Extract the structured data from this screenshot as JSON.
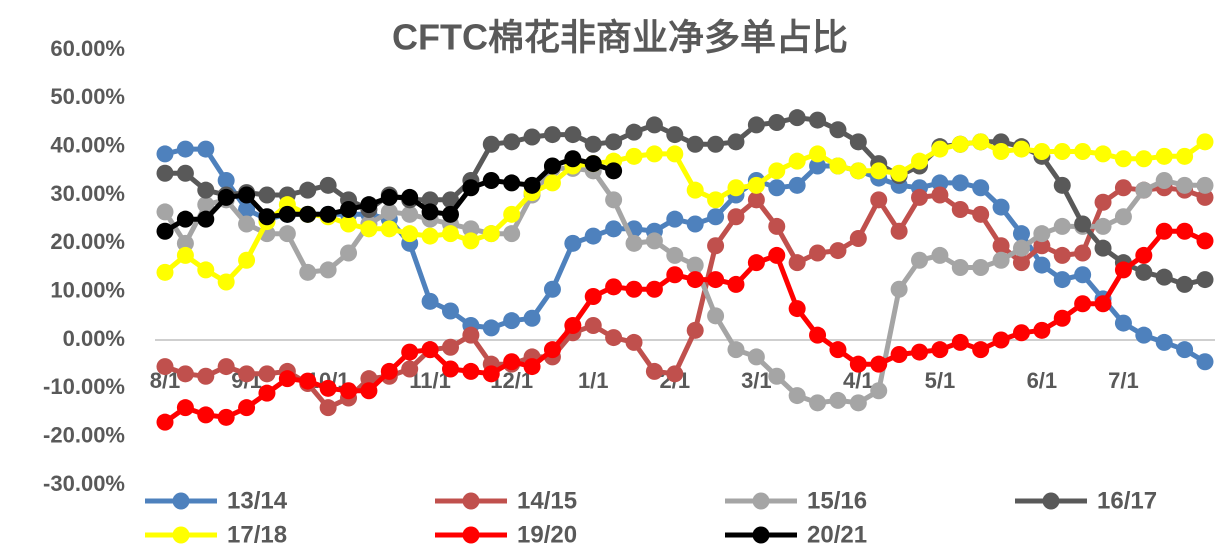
{
  "chart_data": {
    "type": "line",
    "title": "CFTC棉花非商业净多单占比",
    "categories": [
      "8/1",
      null,
      null,
      null,
      "9/1",
      null,
      null,
      null,
      "10/1",
      null,
      null,
      null,
      null,
      "11/1",
      null,
      null,
      null,
      "12/1",
      null,
      null,
      null,
      "1/1",
      null,
      null,
      null,
      "2/1",
      null,
      null,
      null,
      "3/1",
      null,
      null,
      null,
      null,
      "4/1",
      null,
      null,
      null,
      "5/1",
      null,
      null,
      null,
      null,
      "6/1",
      null,
      null,
      null,
      "7/1",
      null,
      null,
      null,
      null
    ],
    "ylim": [
      -30,
      60
    ],
    "yticks": [
      {
        "value": -30,
        "label": "-30.00%"
      },
      {
        "value": -20,
        "label": "-20.00%"
      },
      {
        "value": -10,
        "label": "-10.00%"
      },
      {
        "value": 0,
        "label": "0.00%"
      },
      {
        "value": 10,
        "label": "10.00%"
      },
      {
        "value": 20,
        "label": "20.00%"
      },
      {
        "value": 30,
        "label": "30.00%"
      },
      {
        "value": 40,
        "label": "40.00%"
      },
      {
        "value": 50,
        "label": "50.00%"
      },
      {
        "value": 60,
        "label": "60.00%"
      }
    ],
    "grid": false,
    "legend": "bottom",
    "series": [
      {
        "name": "13/14",
        "color": "#4e81bd",
        "values": [
          38.5,
          39.5,
          39.5,
          33,
          27,
          25,
          26,
          26,
          26,
          26,
          26,
          25,
          20,
          8,
          6,
          3,
          2.5,
          4,
          4.5,
          10.5,
          20,
          21.5,
          23,
          23,
          22.5,
          25,
          24,
          25.5,
          30,
          33,
          31.5,
          32,
          36,
          36,
          35,
          33.5,
          32,
          31.5,
          32.5,
          32.5,
          31.5,
          27.5,
          22,
          15.5,
          12.5,
          13.5,
          8.5,
          3.5,
          1,
          -0.5,
          -2,
          -4.5
        ]
      },
      {
        "name": "14/15",
        "color": "#c0504d",
        "values": [
          -5.5,
          -7,
          -7.5,
          -5.5,
          -7,
          -7,
          -6.5,
          -9,
          -14,
          -12,
          -8,
          -7.5,
          -6,
          -2,
          -1.5,
          1,
          -5,
          -5,
          -3.5,
          -3.5,
          1.5,
          3,
          0.5,
          -0.5,
          -6.5,
          -7,
          2,
          19.5,
          25.5,
          29,
          23.5,
          16,
          18,
          18.5,
          21,
          29,
          22.5,
          29.5,
          30,
          27,
          26,
          19.5,
          16,
          19.5,
          17.5,
          18,
          28.5,
          31.5,
          31,
          31.5,
          31,
          29.5
        ]
      },
      {
        "name": "15/16",
        "color": "#a5a5a5",
        "values": [
          26.5,
          20,
          28,
          29,
          24,
          22,
          22,
          14,
          14.5,
          18,
          24,
          26.5,
          26,
          25,
          24,
          23,
          22,
          22,
          30,
          35.5,
          35.5,
          35,
          29,
          20,
          20.5,
          17.5,
          15.5,
          5,
          -2,
          -3.5,
          -7.5,
          -11.5,
          -13,
          -12.5,
          -13,
          -10.5,
          10.5,
          16.5,
          17.5,
          15,
          15,
          16.5,
          19,
          22,
          23.5,
          23.5,
          23.5,
          25.5,
          31,
          33,
          32,
          32
        ]
      },
      {
        "name": "16/17",
        "color": "#595959",
        "values": [
          34.5,
          34.5,
          31,
          30,
          30.5,
          30,
          30,
          31,
          32,
          29,
          27,
          30,
          29,
          29,
          29,
          33,
          40.5,
          41,
          42,
          42.5,
          42.5,
          40.5,
          41,
          43,
          44.5,
          42.5,
          40.5,
          40.5,
          41,
          44.5,
          45,
          46,
          45.5,
          43.5,
          41,
          36.5,
          34,
          36,
          40,
          40.5,
          41,
          41,
          40,
          38,
          32,
          24,
          19,
          16,
          14,
          13,
          11.5,
          12.5
        ]
      },
      {
        "name": "17/18",
        "color": "#ffff00",
        "values": [
          14,
          17.5,
          14.5,
          12,
          16.5,
          24.5,
          28,
          26,
          25.5,
          24,
          23,
          23,
          22,
          21.5,
          22,
          20.5,
          22,
          26,
          30.5,
          32.5,
          36,
          36.5,
          37,
          38,
          38.5,
          38.5,
          31,
          29,
          31.5,
          32,
          35,
          37,
          38.5,
          36,
          35,
          35,
          34.5,
          37,
          39.5,
          40.5,
          41,
          39,
          39.5,
          39,
          39,
          39,
          38.5,
          37.5,
          37.5,
          38,
          38,
          41
        ]
      },
      {
        "name": "19/20",
        "color": "#ff0000",
        "values": [
          -17,
          -14,
          -15.5,
          -16,
          -14,
          -11,
          -8,
          -8.5,
          -10,
          -10.5,
          -10.5,
          -6.5,
          -2.5,
          -2,
          -6,
          -6.5,
          -7,
          -4.5,
          -5.5,
          -2,
          3,
          9,
          11,
          10.5,
          10.5,
          13.5,
          12.5,
          12.5,
          11.5,
          16,
          17.5,
          6.5,
          1,
          -2,
          -5,
          -5,
          -3,
          -2.5,
          -2,
          -0.5,
          -2,
          0,
          1.5,
          2,
          4.5,
          7.5,
          7.5,
          14.5,
          17.5,
          22.5,
          22.5,
          20.5
        ]
      },
      {
        "name": "20/21",
        "color": "#000000",
        "values": [
          22.5,
          25,
          25,
          29.5,
          30,
          25.5,
          26,
          26,
          26,
          27,
          28,
          29.5,
          29.5,
          26.5,
          26,
          31.5,
          33,
          32.5,
          32,
          36,
          37.5,
          36.5,
          35,
          null,
          null,
          null,
          null,
          null,
          null,
          null,
          null,
          null,
          null,
          null,
          null,
          null,
          null,
          null,
          null,
          null,
          null,
          null,
          null,
          null,
          null,
          null,
          null,
          null,
          null,
          null,
          null,
          null
        ]
      }
    ]
  }
}
